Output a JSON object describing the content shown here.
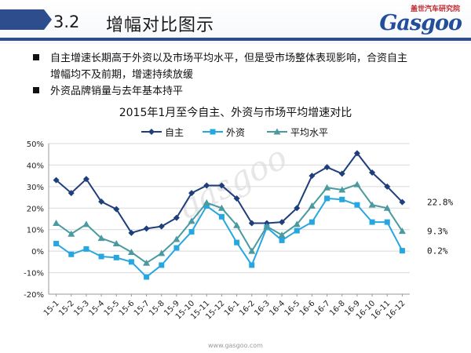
{
  "header": {
    "section_number": "3.2",
    "section_title": "增幅对比图示",
    "logo_sub": "盖世汽车研究院",
    "logo_main": "Gasgoo"
  },
  "bullets": [
    "自主增速长期高于外资以及市场平均水平，但是受市场整体表现影响，合资自主",
    "增幅均不及前期，增速持续放缓",
    "外资品牌销量与去年基本持平"
  ],
  "footer": {
    "url": "www.gasgoo.com"
  },
  "watermark": "gasgoo",
  "chart_data": {
    "type": "line",
    "title": "2015年1月至今自主、外资与市场平均增速对比",
    "categories": [
      "15-1",
      "15-2",
      "15-3",
      "15-4",
      "15-5",
      "15-6",
      "15-7",
      "15-8",
      "15-9",
      "15-10",
      "15-11",
      "15-12",
      "16-1",
      "16-2",
      "16-3",
      "16-4",
      "16-5",
      "16-6",
      "16-7",
      "16-8",
      "16-9",
      "16-10",
      "16-11",
      "16-12"
    ],
    "ylim": [
      -20,
      50
    ],
    "yticks": [
      -20,
      -10,
      0,
      10,
      20,
      30,
      40,
      50
    ],
    "ytick_labels": [
      "-20%",
      "-10%",
      "0%",
      "10%",
      "20%",
      "30%",
      "40%",
      "50%"
    ],
    "grid": true,
    "legend_position": "top",
    "series": [
      {
        "name": "自主",
        "color": "#1f3f7a",
        "marker": "diamond",
        "values": [
          33,
          27,
          33.5,
          23,
          19.5,
          8.5,
          10.5,
          11.5,
          15.5,
          27,
          30.5,
          30.5,
          24.5,
          13,
          13,
          13.5,
          20,
          35,
          39,
          36,
          45.5,
          36.5,
          30,
          22.8
        ],
        "end_label": "22.8%"
      },
      {
        "name": "外资",
        "color": "#27a7e0",
        "marker": "square",
        "values": [
          3.5,
          -1.5,
          1,
          -2.5,
          -3,
          -5,
          -12,
          -6.5,
          1.5,
          9,
          21,
          16,
          4,
          -6.5,
          11,
          5,
          9.5,
          13.5,
          24.5,
          24,
          21.5,
          13.5,
          13.5,
          0.2
        ],
        "end_label": "0.2%"
      },
      {
        "name": "平均水平",
        "color": "#4a9aa0",
        "marker": "triangle",
        "values": [
          13,
          8,
          12.5,
          6,
          3.5,
          -0.5,
          -5.5,
          -1,
          5.5,
          14,
          22.5,
          20,
          12,
          0,
          11.5,
          7.5,
          12.5,
          21,
          29.5,
          28.5,
          31,
          21.5,
          20,
          9.3
        ],
        "end_label": "9.3%"
      }
    ]
  }
}
